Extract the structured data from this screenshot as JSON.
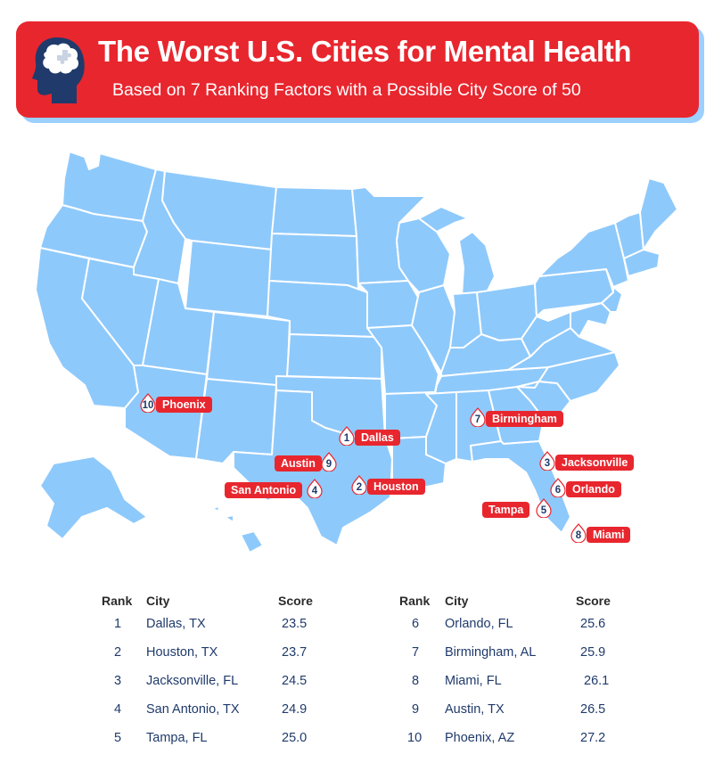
{
  "header": {
    "title": "The Worst U.S. Cities for Mental Health",
    "subtitle": "Based on 7 Ranking Factors with a Possible City Score of 50"
  },
  "colors": {
    "banner": "#e8262e",
    "banner_shadow": "#9bd0ff",
    "map_fill": "#8ec9fb",
    "map_stroke": "#ffffff",
    "text_dark": "#1f3a6b",
    "head_icon": "#1f3a6b"
  },
  "icons": [
    "brain-head-icon",
    "map-pin-icon"
  ],
  "map_markers": [
    {
      "rank": "1",
      "city": "Dallas"
    },
    {
      "rank": "2",
      "city": "Houston"
    },
    {
      "rank": "3",
      "city": "Jacksonville"
    },
    {
      "rank": "4",
      "city": "San Antonio"
    },
    {
      "rank": "5",
      "city": "Tampa"
    },
    {
      "rank": "6",
      "city": "Orlando"
    },
    {
      "rank": "7",
      "city": "Birmingham"
    },
    {
      "rank": "8",
      "city": "Miami"
    },
    {
      "rank": "9",
      "city": "Austin"
    },
    {
      "rank": "10",
      "city": "Phoenix"
    }
  ],
  "table": {
    "headers": {
      "rank": "Rank",
      "city": "City",
      "score": "Score"
    },
    "left": [
      {
        "rank": "1",
        "city": "Dallas, TX",
        "score": "23.5"
      },
      {
        "rank": "2",
        "city": "Houston, TX",
        "score": "23.7"
      },
      {
        "rank": "3",
        "city": "Jacksonville, FL",
        "score": "24.5"
      },
      {
        "rank": "4",
        "city": "San Antonio, TX",
        "score": "24.9"
      },
      {
        "rank": "5",
        "city": "Tampa, FL",
        "score": "25.0"
      }
    ],
    "right": [
      {
        "rank": "6",
        "city": "Orlando, FL",
        "score": "25.6"
      },
      {
        "rank": "7",
        "city": "Birmingham, AL",
        "score": "25.9"
      },
      {
        "rank": "8",
        "city": "Miami, FL",
        "score": "26.1"
      },
      {
        "rank": "9",
        "city": "Austin, TX",
        "score": "26.5"
      },
      {
        "rank": "10",
        "city": "Phoenix, AZ",
        "score": "27.2"
      }
    ]
  }
}
